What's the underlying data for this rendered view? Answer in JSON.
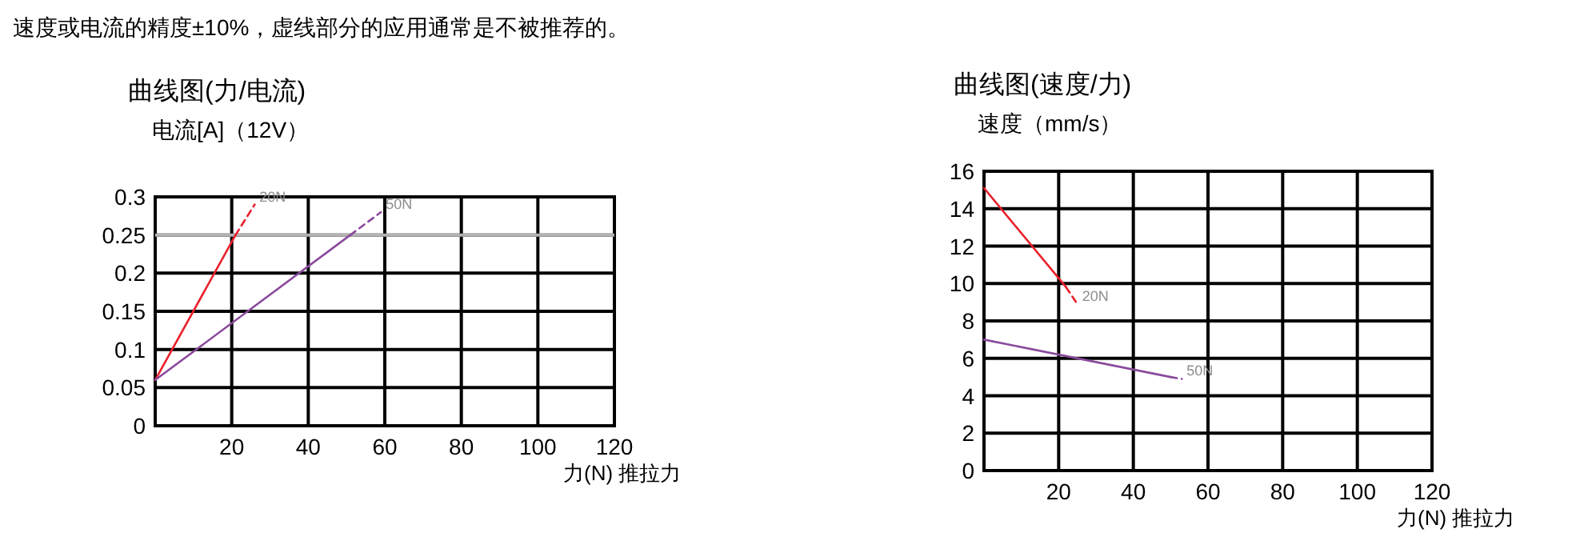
{
  "chart_data": [
    {
      "type": "line",
      "title": "曲线图(力/电流)",
      "ylabel": "电流[A]（12V）",
      "xlabel": "力(N) 推拉力",
      "annotations": [
        "速度或电流的精度±10%，虚线部分的应用通常是不被推荐的。"
      ],
      "xlim": [
        0,
        120
      ],
      "xticks": [
        {
          "value": 0,
          "label": null
        },
        20,
        40,
        60,
        80,
        100,
        120
      ],
      "ylim": [
        0,
        0.3
      ],
      "yticks": [
        0,
        0.05,
        0.1,
        0.15,
        0.2,
        0.25,
        0.3
      ],
      "grid": true,
      "ref_lines": [
        {
          "axis": "y",
          "value": 0.25,
          "label": null,
          "color": "#b3b3b3"
        }
      ],
      "series": [
        {
          "color": "#e8202a",
          "x": [
            0,
            21
          ],
          "values": [
            0.06,
            0.25
          ]
        },
        {
          "name": "20N",
          "color": "#e8202a",
          "line_style": "dashed",
          "x": [
            21,
            26
          ],
          "values": [
            0.25,
            0.29
          ]
        },
        {
          "color": "#8a4a9c",
          "x": [
            0,
            51
          ],
          "values": [
            0.06,
            0.25
          ]
        },
        {
          "name": "50N",
          "color": "#8a4a9c",
          "line_style": "dashed",
          "x": [
            51,
            59
          ],
          "values": [
            0.25,
            0.28
          ]
        }
      ]
    },
    {
      "type": "line",
      "title": "曲线图(速度/力)",
      "ylabel": "速度（mm/s）",
      "xlabel": "力(N) 推拉力",
      "xlim": [
        0,
        120
      ],
      "xticks": [
        {
          "value": 0,
          "label": null
        },
        20,
        40,
        60,
        80,
        100,
        120
      ],
      "ylim": [
        0,
        16
      ],
      "yticks": [
        0,
        2,
        4,
        6,
        8,
        10,
        12,
        14,
        16
      ],
      "grid": true,
      "series": [
        {
          "color": "#e8202a",
          "x": [
            0,
            22
          ],
          "values": [
            15.1,
            9.8
          ]
        },
        {
          "name": "20N",
          "color": "#e8202a",
          "line_style": "dashed",
          "x": [
            22,
            25
          ],
          "values": [
            9.8,
            8.9
          ]
        },
        {
          "color": "#8a4a9c",
          "x": [
            0,
            50
          ],
          "values": [
            7.0,
            5.0
          ]
        },
        {
          "name": "50N",
          "color": "#8a4a9c",
          "line_style": "dashed",
          "x": [
            50,
            53
          ],
          "values": [
            5.0,
            4.9
          ]
        }
      ]
    }
  ]
}
